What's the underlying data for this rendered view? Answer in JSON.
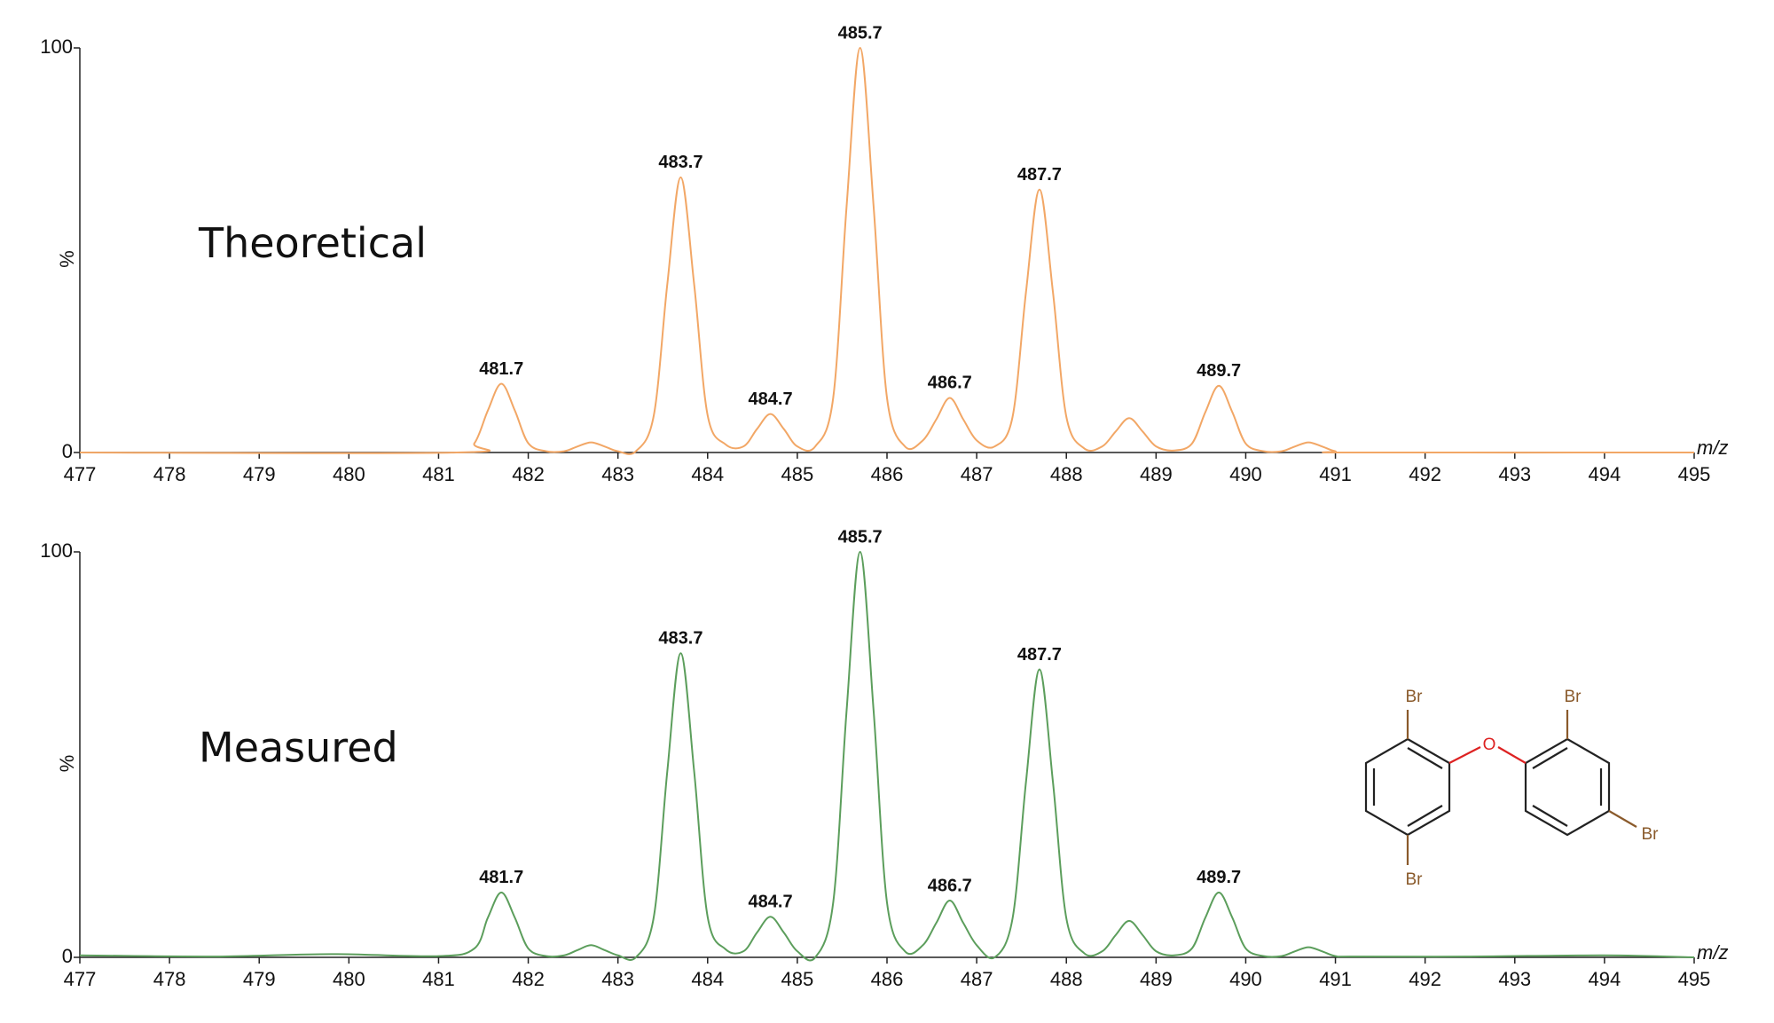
{
  "chart_data": [
    {
      "type": "line",
      "title": "Theoretical",
      "y_label": "%",
      "x_label": "m/z",
      "color": "#f2a766",
      "x": [
        477,
        481.2,
        481.4,
        481.55,
        481.7,
        481.85,
        482.0,
        482.2,
        482.4,
        482.55,
        482.7,
        482.85,
        483.0,
        483.2,
        483.4,
        483.55,
        483.7,
        483.85,
        484.0,
        484.2,
        484.4,
        484.55,
        484.7,
        484.85,
        485.0,
        485.2,
        485.4,
        485.55,
        485.7,
        485.85,
        486.0,
        486.2,
        486.4,
        486.55,
        486.7,
        486.85,
        487.0,
        487.2,
        487.4,
        487.55,
        487.7,
        487.85,
        488.0,
        488.2,
        488.4,
        488.55,
        488.7,
        488.85,
        489.0,
        489.2,
        489.4,
        489.55,
        489.7,
        489.85,
        490.0,
        490.2,
        490.4,
        490.55,
        490.7,
        490.85,
        491.0,
        491.2,
        495
      ],
      "values": [
        0,
        0,
        2.3,
        10.4,
        17,
        10.4,
        2.3,
        0.3,
        0.3,
        1.5,
        2.5,
        1.5,
        0.3,
        0.3,
        9.2,
        41.5,
        68,
        41.5,
        9.2,
        2,
        1.5,
        5.8,
        9.5,
        5.8,
        1.5,
        1.5,
        13.5,
        61,
        100,
        61,
        13.5,
        1.5,
        3,
        8.2,
        13.5,
        8.2,
        3,
        1.5,
        8.8,
        39.7,
        65,
        39.7,
        8.8,
        1,
        1.5,
        5.2,
        8.5,
        5.2,
        1.5,
        0.5,
        2.2,
        10,
        16.5,
        10,
        2.2,
        0.3,
        0.3,
        1.5,
        2.5,
        1.5,
        0.3,
        0,
        0
      ],
      "peaks": [
        481.7,
        483.7,
        484.7,
        485.7,
        486.7,
        487.7,
        489.7
      ],
      "xlim": [
        477,
        495
      ],
      "xticks": [
        477,
        478,
        479,
        480,
        481,
        482,
        483,
        484,
        485,
        486,
        487,
        488,
        489,
        490,
        491,
        492,
        493,
        494,
        495
      ],
      "ylim": [
        0,
        100
      ],
      "yticks": [
        0,
        100
      ]
    },
    {
      "type": "line",
      "title": "Measured",
      "y_label": "%",
      "x_label": "m/z",
      "color": "#5c9e5c",
      "x": [
        477,
        478.5,
        479.8,
        481.0,
        481.4,
        481.55,
        481.7,
        481.85,
        482.0,
        482.2,
        482.4,
        482.55,
        482.7,
        482.85,
        483.0,
        483.2,
        483.4,
        483.55,
        483.7,
        483.85,
        484.0,
        484.2,
        484.4,
        484.55,
        484.7,
        484.85,
        485.0,
        485.2,
        485.4,
        485.55,
        485.7,
        485.85,
        486.0,
        486.2,
        486.4,
        486.55,
        486.7,
        486.85,
        487.0,
        487.2,
        487.4,
        487.55,
        487.7,
        487.85,
        488.0,
        488.2,
        488.4,
        488.55,
        488.7,
        488.85,
        489.0,
        489.2,
        489.4,
        489.55,
        489.7,
        489.85,
        490.0,
        490.2,
        490.4,
        490.55,
        490.7,
        490.85,
        491.0,
        491.2,
        492.5,
        494,
        495
      ],
      "values": [
        0.5,
        0.2,
        0.8,
        0.3,
        2.2,
        9.8,
        16,
        9.8,
        2.2,
        0.3,
        0.5,
        1.8,
        3,
        1.8,
        0.5,
        0,
        10,
        45.8,
        75,
        45.8,
        10,
        2,
        1.5,
        6.1,
        10,
        6.1,
        1.5,
        0,
        13.5,
        61,
        100,
        61,
        13.5,
        1.5,
        3,
        8.5,
        14,
        8.5,
        3,
        0,
        9.6,
        43.3,
        71,
        43.3,
        9.6,
        1,
        1.5,
        5.5,
        9,
        5.5,
        1.5,
        0.5,
        2.2,
        9.8,
        16,
        9.8,
        2.2,
        0.3,
        0.3,
        1.5,
        2.5,
        1.5,
        0.3,
        0.2,
        0.2,
        0.5,
        0
      ],
      "peaks": [
        481.7,
        483.7,
        484.7,
        485.7,
        486.7,
        487.7,
        489.7
      ],
      "xlim": [
        477,
        495
      ],
      "xticks": [
        477,
        478,
        479,
        480,
        481,
        482,
        483,
        484,
        485,
        486,
        487,
        488,
        489,
        490,
        491,
        492,
        493,
        494,
        495
      ],
      "ylim": [
        0,
        100
      ],
      "yticks": [
        0,
        100
      ]
    }
  ],
  "structure": {
    "labels": [
      "Br",
      "Br",
      "O",
      "Br",
      "Br"
    ]
  }
}
